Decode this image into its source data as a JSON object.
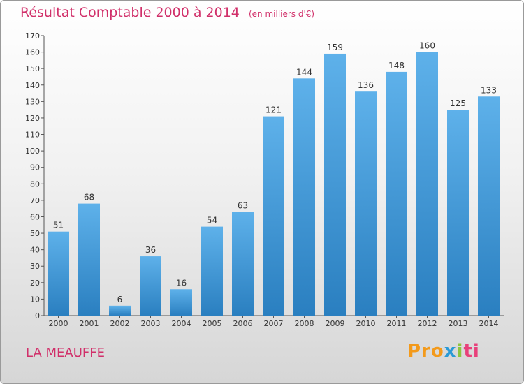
{
  "header": {
    "title": "Résultat Comptable 2000 à 2014",
    "subtitle": "(en milliers d'€)"
  },
  "footer": {
    "city": "LA MEAUFFE",
    "logo_text": "Proxiti"
  },
  "colors": {
    "title": "#d1306a",
    "bar_top": "#5eb1ea",
    "bar_bottom": "#2a7fc0"
  },
  "chart_data": {
    "type": "bar",
    "title": "Résultat Comptable 2000 à 2014",
    "subtitle": "(en milliers d'€)",
    "categories": [
      "2000",
      "2001",
      "2002",
      "2003",
      "2004",
      "2005",
      "2006",
      "2007",
      "2008",
      "2009",
      "2010",
      "2011",
      "2012",
      "2013",
      "2014"
    ],
    "values": [
      51,
      68,
      6,
      36,
      16,
      54,
      63,
      121,
      144,
      159,
      136,
      148,
      160,
      125,
      133
    ],
    "ylim": [
      0,
      170
    ],
    "yticks": [
      0,
      10,
      20,
      30,
      40,
      50,
      60,
      70,
      80,
      90,
      100,
      110,
      120,
      130,
      140,
      150,
      160,
      170
    ],
    "grid": false,
    "data_labels": true
  }
}
